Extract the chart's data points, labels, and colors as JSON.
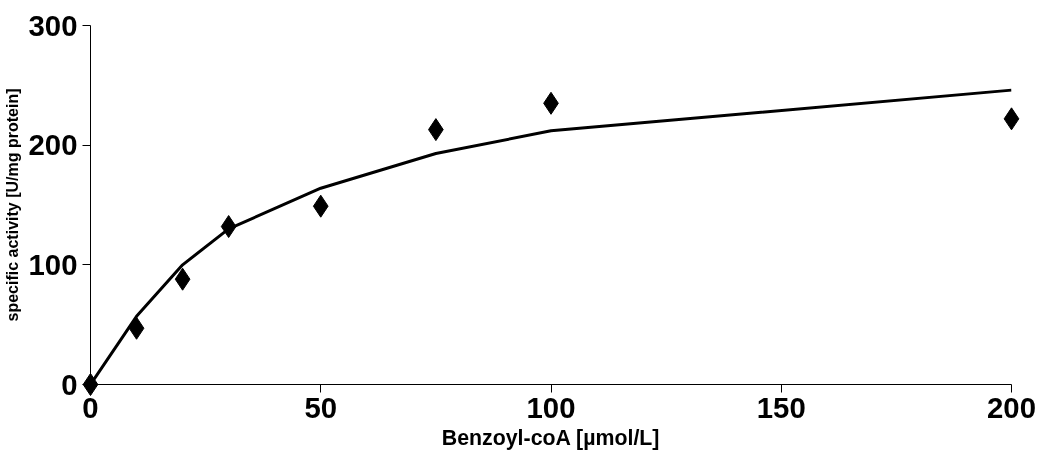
{
  "chart_data": {
    "type": "scatter",
    "xlabel": "Benzoyl-coA [µmol/L]",
    "ylabel": "specific activity [U/mg protein]",
    "xlim": [
      0,
      200
    ],
    "xticks": [
      0,
      50,
      100,
      150,
      200
    ],
    "ylim": [
      0,
      300
    ],
    "yticks": [
      0,
      100,
      200,
      300
    ],
    "grid": false,
    "series": [
      {
        "marker": "diamond",
        "color": "#000000",
        "x": [
          0,
          10,
          20,
          30,
          50,
          75,
          100,
          200
        ],
        "values": [
          0,
          47,
          88,
          132,
          149,
          213,
          235,
          222
        ]
      },
      {
        "type": "line",
        "marker": "none",
        "line_style": "solid",
        "color": "#000000",
        "x": [
          0,
          10,
          20,
          30,
          50,
          75,
          100,
          200
        ],
        "values": [
          0,
          57,
          100,
          130,
          164,
          193,
          212,
          246
        ]
      }
    ]
  }
}
